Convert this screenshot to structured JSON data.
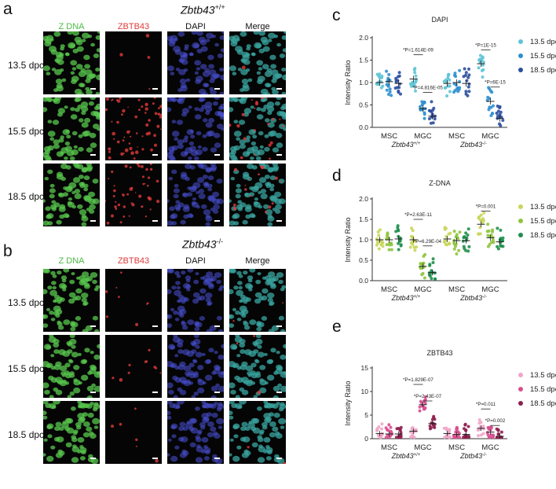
{
  "panel_a": {
    "letter": "a",
    "genotype": "Zbtb43",
    "genotype_sup": "+/+",
    "columns": [
      "Z DNA",
      "ZBTB43",
      "DAPI",
      "Merge"
    ],
    "rows": [
      "13.5 dpc",
      "15.5 dpc",
      "18.5 dpc"
    ]
  },
  "panel_b": {
    "letter": "b",
    "genotype": "Zbtb43",
    "genotype_sup": "-/-",
    "columns": [
      "Z DNA",
      "ZBTB43",
      "DAPI",
      "Merge"
    ],
    "rows": [
      "13.5 dpc",
      "15.5 dpc",
      "18.5 dpc"
    ]
  },
  "colors": {
    "green": "#58c84e",
    "red": "#e03a3a",
    "blue": "#4a52d8",
    "c_series": [
      "#5ec4d6",
      "#2f8fd0",
      "#2c4f9e"
    ],
    "d_series": [
      "#c9d65a",
      "#8fc43e",
      "#1f8f4e"
    ],
    "e_series": [
      "#f0a6c8",
      "#d84e8e",
      "#8e1f4e"
    ]
  },
  "chart_data": [
    {
      "panel": "c",
      "type": "scatter",
      "title": "DAPI",
      "ylabel": "Intensity Ratio",
      "ylim": [
        0,
        2.0
      ],
      "yticks": [
        "0.0",
        "0.5",
        "1.0",
        "1.5",
        "2.0"
      ],
      "categories": [
        "MSC",
        "MGC",
        "MSC",
        "MGC"
      ],
      "groups": [
        {
          "genotype": "Zbtb43",
          "sup": "+/+"
        },
        {
          "genotype": "Zbtb43",
          "sup": "-/-"
        }
      ],
      "series": [
        {
          "name": "13.5 dpc",
          "means": [
            1.0,
            1.08,
            0.98,
            1.42
          ]
        },
        {
          "name": "15.5 dpc",
          "means": [
            1.02,
            0.42,
            1.0,
            0.58
          ]
        },
        {
          "name": "18.5 dpc",
          "means": [
            0.98,
            0.25,
            0.98,
            0.2
          ]
        }
      ],
      "annotations": [
        {
          "text": "*P=1.614E-09",
          "pair": [
            0,
            1
          ],
          "cat": 1,
          "level": 1.62
        },
        {
          "text": "*P=4.816E-05",
          "pair": [
            1,
            2
          ],
          "cat": 1,
          "level": 0.78
        },
        {
          "text": "*P=1E-15",
          "pair": [
            0,
            1
          ],
          "cat": 3,
          "level": 1.73
        },
        {
          "text": "*P=6E-15",
          "pair": [
            1,
            2
          ],
          "cat": 3,
          "level": 0.9
        }
      ]
    },
    {
      "panel": "d",
      "type": "scatter",
      "title": "Z-DNA",
      "ylabel": "Intensity Ratio",
      "ylim": [
        0,
        2.0
      ],
      "yticks": [
        "0.0",
        "0.5",
        "1.0",
        "1.5",
        "2.0"
      ],
      "categories": [
        "MSC",
        "MGC",
        "MSC",
        "MGC"
      ],
      "groups": [
        {
          "genotype": "Zbtb43",
          "sup": "+/+"
        },
        {
          "genotype": "Zbtb43",
          "sup": "-/-"
        }
      ],
      "series": [
        {
          "name": "13.5 dpc",
          "means": [
            1.0,
            1.0,
            1.02,
            1.38
          ]
        },
        {
          "name": "15.5 dpc",
          "means": [
            1.0,
            0.35,
            0.98,
            1.05
          ]
        },
        {
          "name": "18.5 dpc",
          "means": [
            1.02,
            0.2,
            0.98,
            0.95
          ]
        }
      ],
      "annotations": [
        {
          "text": "*P=2.63E-11",
          "pair": [
            0,
            1
          ],
          "cat": 1,
          "level": 1.5
        },
        {
          "text": "*P=6.29E-04",
          "pair": [
            1,
            2
          ],
          "cat": 1,
          "level": 0.85
        },
        {
          "text": "*P=0.001",
          "pair": [
            0,
            1
          ],
          "cat": 3,
          "level": 1.7
        }
      ]
    },
    {
      "panel": "e",
      "type": "scatter",
      "title": "ZBTB43",
      "ylabel": "Intensity Ratio",
      "ylim": [
        0,
        15
      ],
      "yticks": [
        "0",
        "5",
        "10",
        "15"
      ],
      "categories": [
        "MSC",
        "MGC",
        "MSC",
        "MGC"
      ],
      "groups": [
        {
          "genotype": "Zbtb43",
          "sup": "+/+"
        },
        {
          "genotype": "Zbtb43",
          "sup": "-/-"
        }
      ],
      "series": [
        {
          "name": "13.5 dpc",
          "means": [
            1.1,
            1.6,
            1.1,
            2.2
          ]
        },
        {
          "name": "15.5 dpc",
          "means": [
            1.0,
            7.2,
            0.9,
            1.4
          ]
        },
        {
          "name": "18.5 dpc",
          "means": [
            1.0,
            3.2,
            0.9,
            0.5
          ]
        }
      ],
      "annotations": [
        {
          "text": "*P=1.829E-07",
          "pair": [
            0,
            1
          ],
          "cat": 1,
          "level": 11.5
        },
        {
          "text": "*P=2.43E-07",
          "pair": [
            1,
            2
          ],
          "cat": 1,
          "level": 8.0
        },
        {
          "text": "*P=0.011",
          "pair": [
            0,
            1
          ],
          "cat": 3,
          "level": 6.3
        },
        {
          "text": "*P=0.002",
          "pair": [
            1,
            2
          ],
          "cat": 3,
          "level": 2.8
        }
      ]
    }
  ],
  "chart_letters": [
    "c",
    "d",
    "e"
  ]
}
